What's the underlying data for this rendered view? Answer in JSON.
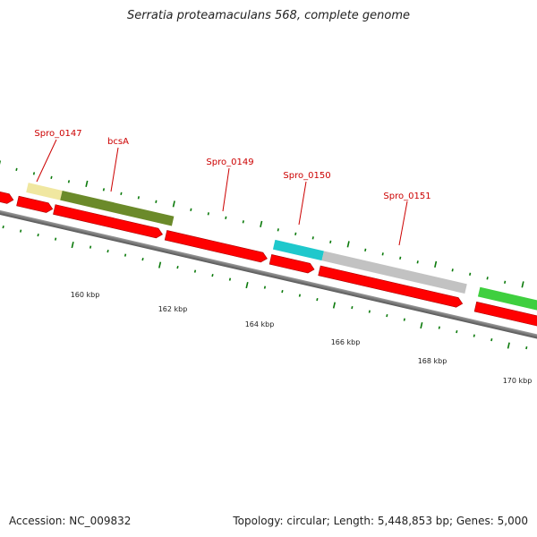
{
  "title": "Serratia proteamaculans 568, complete genome",
  "footer": {
    "accession": "Accession: NC_009832",
    "summary": "Topology: circular; Length: 5,448,853 bp; Genes: 5,000"
  },
  "gene_labels": [
    "Spro_0147",
    "bcsA",
    "Spro_0149",
    "Spro_0150",
    "Spro_0151"
  ],
  "kbp_labels": [
    "160 kbp",
    "162 kbp",
    "164 kbp",
    "166 kbp",
    "168 kbp",
    "170 kbp"
  ],
  "colors": {
    "cds": "#ff0000",
    "backbone": "#777777",
    "tick": "#0b7a0b",
    "gene_label": "#cc0000",
    "feature_yellow": "#f0e7a0",
    "feature_olive": "#6b8a2a",
    "feature_cyan": "#1fc8cc",
    "feature_gray": "#c2c2c2",
    "feature_green": "#3fcf3f"
  }
}
